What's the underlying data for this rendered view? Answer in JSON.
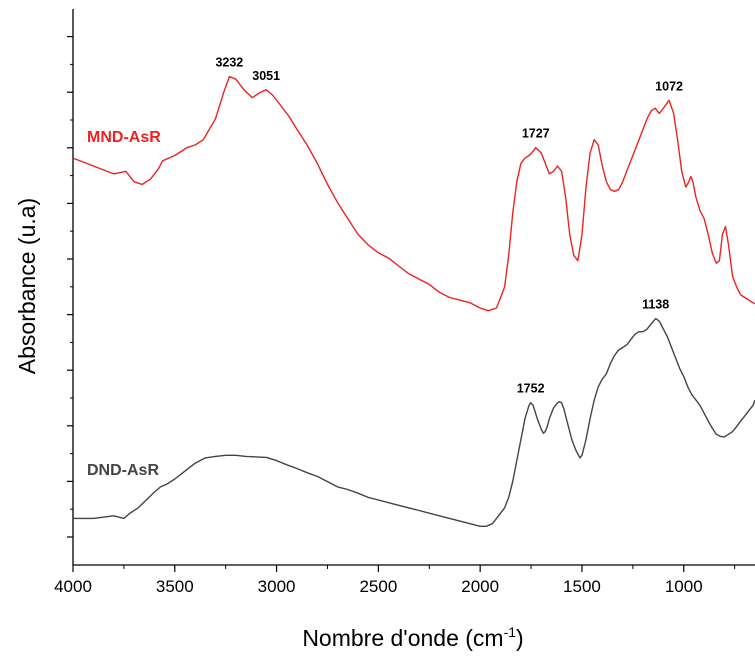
{
  "chart_data": {
    "type": "line",
    "xlabel": "Nombre d'onde (cm",
    "xlabel_sup": "-1",
    "xlabel_end": ")",
    "ylabel": "Absorbance (u.a)",
    "xlim": [
      4000,
      650
    ],
    "x_reversed": true,
    "ylim": [
      0,
      1
    ],
    "y_tick_labels_shown": false,
    "x_ticks": [
      4000,
      3500,
      3000,
      2500,
      2000,
      1500,
      1000
    ],
    "x_tick_labels": [
      "4000",
      "3500",
      "3000",
      "2500",
      "2000",
      "1500",
      "1000"
    ],
    "grid": false,
    "series": [
      {
        "name": "MND-AsR",
        "color": "#ee2222",
        "x": [
          4000,
          3900,
          3800,
          3740,
          3700,
          3660,
          3620,
          3580,
          3560,
          3500,
          3440,
          3400,
          3360,
          3300,
          3260,
          3232,
          3200,
          3160,
          3120,
          3080,
          3051,
          3020,
          2980,
          2940,
          2900,
          2850,
          2800,
          2750,
          2700,
          2650,
          2600,
          2550,
          2500,
          2450,
          2400,
          2350,
          2300,
          2250,
          2200,
          2150,
          2100,
          2050,
          2000,
          1960,
          1920,
          1880,
          1860,
          1840,
          1820,
          1800,
          1780,
          1760,
          1740,
          1727,
          1700,
          1680,
          1660,
          1640,
          1620,
          1600,
          1580,
          1560,
          1540,
          1520,
          1500,
          1480,
          1460,
          1440,
          1420,
          1400,
          1380,
          1360,
          1340,
          1320,
          1300,
          1280,
          1260,
          1240,
          1220,
          1200,
          1180,
          1160,
          1140,
          1120,
          1100,
          1072,
          1050,
          1030,
          1010,
          990,
          975,
          965,
          955,
          940,
          920,
          900,
          880,
          860,
          840,
          825,
          810,
          795,
          780,
          760,
          740,
          720,
          700,
          680,
          660,
          650
        ],
        "y": [
          0.745,
          0.73,
          0.715,
          0.72,
          0.7,
          0.695,
          0.705,
          0.725,
          0.74,
          0.75,
          0.765,
          0.77,
          0.78,
          0.82,
          0.87,
          0.9,
          0.895,
          0.875,
          0.86,
          0.87,
          0.875,
          0.865,
          0.845,
          0.825,
          0.8,
          0.77,
          0.735,
          0.695,
          0.66,
          0.63,
          0.6,
          0.58,
          0.565,
          0.555,
          0.54,
          0.525,
          0.515,
          0.505,
          0.49,
          0.48,
          0.475,
          0.47,
          0.46,
          0.455,
          0.46,
          0.5,
          0.56,
          0.64,
          0.7,
          0.735,
          0.745,
          0.75,
          0.758,
          0.765,
          0.755,
          0.735,
          0.715,
          0.72,
          0.73,
          0.72,
          0.67,
          0.6,
          0.56,
          0.55,
          0.6,
          0.69,
          0.755,
          0.78,
          0.77,
          0.73,
          0.7,
          0.685,
          0.682,
          0.685,
          0.7,
          0.72,
          0.74,
          0.76,
          0.78,
          0.8,
          0.82,
          0.835,
          0.84,
          0.83,
          0.84,
          0.855,
          0.83,
          0.78,
          0.72,
          0.69,
          0.7,
          0.71,
          0.7,
          0.67,
          0.645,
          0.63,
          0.6,
          0.565,
          0.545,
          0.55,
          0.6,
          0.615,
          0.58,
          0.52,
          0.5,
          0.485,
          0.48,
          0.475,
          0.47,
          0.468
        ]
      },
      {
        "name": "DND-AsR",
        "color": "#444444",
        "x": [
          4000,
          3900,
          3800,
          3750,
          3720,
          3680,
          3640,
          3600,
          3570,
          3540,
          3500,
          3450,
          3400,
          3350,
          3300,
          3250,
          3200,
          3150,
          3100,
          3050,
          3000,
          2950,
          2900,
          2850,
          2800,
          2750,
          2700,
          2650,
          2600,
          2550,
          2500,
          2450,
          2400,
          2350,
          2300,
          2250,
          2200,
          2150,
          2100,
          2050,
          2000,
          1970,
          1940,
          1920,
          1900,
          1880,
          1860,
          1840,
          1820,
          1800,
          1780,
          1760,
          1752,
          1740,
          1720,
          1700,
          1690,
          1680,
          1670,
          1660,
          1640,
          1620,
          1610,
          1600,
          1590,
          1570,
          1550,
          1530,
          1510,
          1500,
          1480,
          1460,
          1440,
          1420,
          1400,
          1380,
          1360,
          1340,
          1320,
          1300,
          1280,
          1260,
          1240,
          1220,
          1200,
          1180,
          1160,
          1138,
          1120,
          1100,
          1080,
          1060,
          1040,
          1020,
          1000,
          980,
          960,
          940,
          920,
          900,
          880,
          860,
          840,
          820,
          800,
          780,
          760,
          740,
          720,
          700,
          680,
          660,
          650
        ],
        "y": [
          0.06,
          0.06,
          0.065,
          0.06,
          0.07,
          0.08,
          0.095,
          0.11,
          0.12,
          0.125,
          0.135,
          0.15,
          0.165,
          0.175,
          0.178,
          0.18,
          0.18,
          0.178,
          0.177,
          0.176,
          0.17,
          0.162,
          0.155,
          0.147,
          0.14,
          0.13,
          0.12,
          0.115,
          0.108,
          0.1,
          0.095,
          0.09,
          0.085,
          0.08,
          0.075,
          0.07,
          0.065,
          0.06,
          0.055,
          0.05,
          0.045,
          0.045,
          0.05,
          0.06,
          0.07,
          0.08,
          0.1,
          0.13,
          0.17,
          0.21,
          0.25,
          0.275,
          0.28,
          0.275,
          0.25,
          0.23,
          0.222,
          0.225,
          0.235,
          0.25,
          0.27,
          0.28,
          0.282,
          0.28,
          0.27,
          0.24,
          0.21,
          0.19,
          0.175,
          0.18,
          0.21,
          0.25,
          0.285,
          0.31,
          0.325,
          0.335,
          0.355,
          0.37,
          0.38,
          0.385,
          0.39,
          0.4,
          0.41,
          0.415,
          0.415,
          0.42,
          0.43,
          0.44,
          0.435,
          0.42,
          0.405,
          0.385,
          0.365,
          0.345,
          0.33,
          0.31,
          0.295,
          0.285,
          0.275,
          0.26,
          0.245,
          0.232,
          0.22,
          0.216,
          0.215,
          0.22,
          0.225,
          0.235,
          0.245,
          0.255,
          0.265,
          0.275,
          0.285
        ]
      }
    ],
    "peak_labels": [
      {
        "text": "3232",
        "x": 3232,
        "y": 0.9,
        "series": "MND-AsR"
      },
      {
        "text": "3051",
        "x": 3051,
        "y": 0.875,
        "series": "MND-AsR"
      },
      {
        "text": "1727",
        "x": 1727,
        "y": 0.765,
        "series": "MND-AsR"
      },
      {
        "text": "1072",
        "x": 1072,
        "y": 0.855,
        "series": "MND-AsR"
      },
      {
        "text": "1752",
        "x": 1752,
        "y": 0.28,
        "series": "DND-AsR"
      },
      {
        "text": "1138",
        "x": 1138,
        "y": 0.44,
        "series": "DND-AsR"
      }
    ]
  }
}
